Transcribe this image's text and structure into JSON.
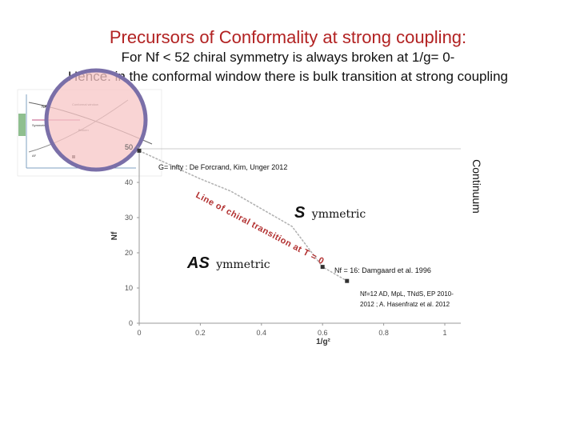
{
  "slide": {
    "title": "Precursors  of Conformality  at strong coupling:",
    "subtitle_line1": "For Nf < 52 chiral symmetry is always broken at  1/g= 0-",
    "subtitle_line2": "Hence. in the conformal window there is  bulk transition at strong coupling"
  },
  "inset": {
    "labels": [
      "NAF",
      "Conformal window",
      "Symmetric",
      "Broken",
      "AF"
    ]
  },
  "plot": {
    "continuum_label": "Continuum",
    "ref_de_forcrand": "G= infty : De Forcrand, Kim, Unger 2012",
    "line_label": "Line of chiral transition at T = 0",
    "symmetric": {
      "big": "S",
      "rest": "ymmetric"
    },
    "asymmetric": {
      "big": "AS",
      "rest": "ymmetric"
    },
    "ref_damgaard": "Nf = 16: Damgaard et al. 1996",
    "ref_nf12_line1": "Nf=12 AD, MpL, TNdS, EP 2010-",
    "ref_nf12_line2": "2012 ; A. Hasenfratz et al. 2012"
  },
  "chart_data": {
    "type": "line",
    "xlabel": "1/g²",
    "ylabel": "Nf",
    "x_ticks": [
      "0",
      "0.2",
      "0.4",
      "0.6",
      "0.8",
      "1"
    ],
    "y_ticks": [
      "0",
      "10",
      "20",
      "30",
      "40",
      "50"
    ],
    "xlim": [
      0,
      1
    ],
    "ylim": [
      0,
      50
    ],
    "series": [
      {
        "x": [
          0,
          0.1,
          0.2,
          0.3,
          0.4,
          0.5,
          0.6,
          0.68
        ],
        "y": [
          49,
          45,
          41,
          37.5,
          32.5,
          27.5,
          16,
          12
        ]
      }
    ],
    "points": [
      {
        "x": 0,
        "y": 49
      },
      {
        "x": 0.6,
        "y": 16
      },
      {
        "x": 0.68,
        "y": 12
      }
    ]
  }
}
